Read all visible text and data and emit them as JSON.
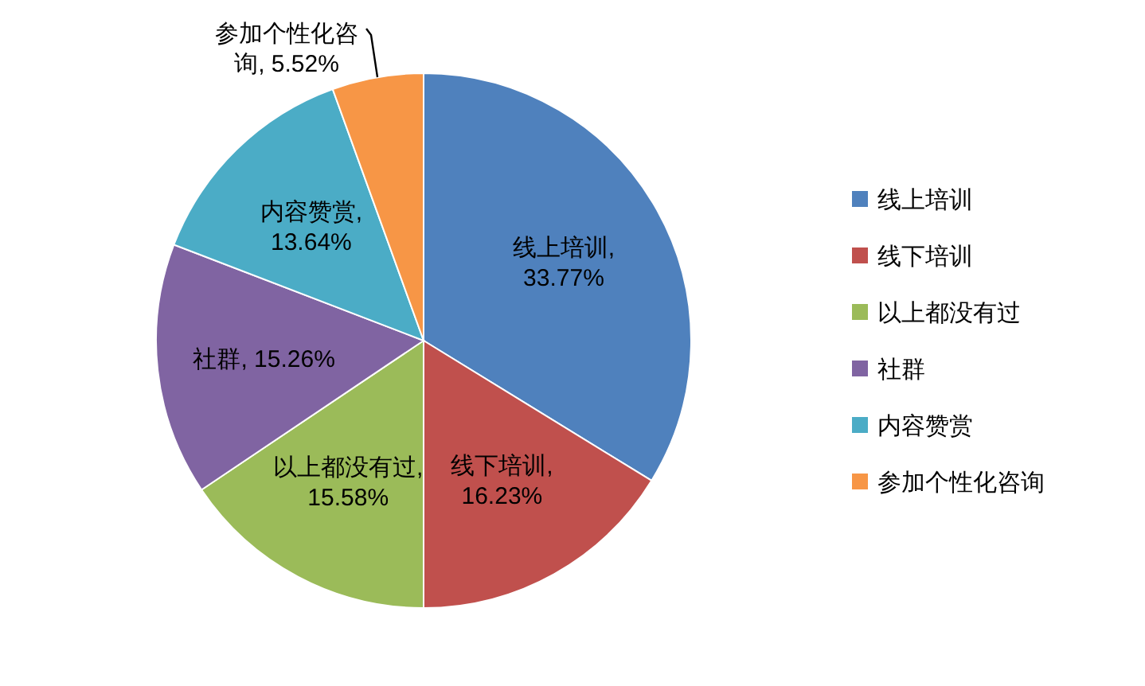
{
  "chart_data": {
    "type": "pie",
    "categories": [
      "线上培训",
      "线下培训",
      "以上都没有过",
      "社群",
      "内容赞赏",
      "参加个性化咨询"
    ],
    "values": [
      33.77,
      16.23,
      15.58,
      15.26,
      13.64,
      5.52
    ],
    "colors": [
      "#4f81bd",
      "#c0504d",
      "#9bbb59",
      "#8064a2",
      "#4bacc6",
      "#f79646"
    ],
    "value_labels": [
      "线上培训, 33.77%",
      "线下培训, 16.23%",
      "以上都没有过, 15.58%",
      "社群, 15.26%",
      "内容赞赏, 13.64%",
      "参加个性化咨询, 5.52%"
    ],
    "legend": "right"
  }
}
